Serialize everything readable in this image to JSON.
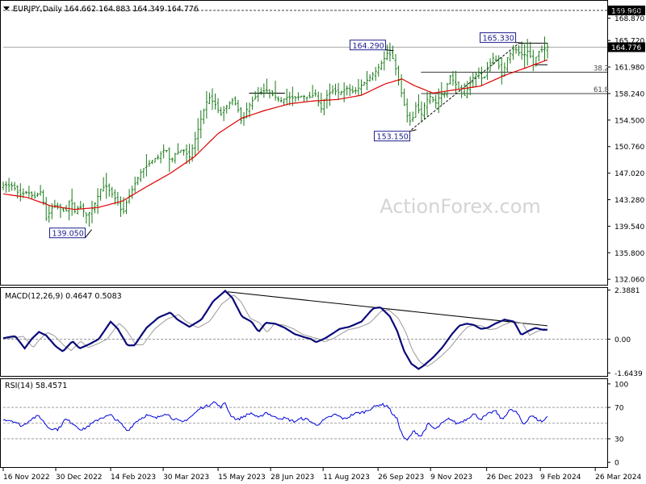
{
  "colors": {
    "price": "#1a7a1a",
    "ma": "#e00000",
    "macd": "#0a0a7a",
    "signal": "#9a9a9a",
    "rsi": "#0000dd",
    "grid": "#8c8c8c",
    "label_box": "#1c1c8c",
    "watermark": "#d4d4d4"
  },
  "chart_data": [
    {
      "type": "ohlc",
      "title": "EURJPY,Daily  164.662 164.883 164.349 164.776",
      "series": [
        {
          "name": "EURJPY,Daily",
          "values": []
        }
      ],
      "anchors": [
        {
          "d": 0,
          "v": 145.3
        },
        {
          "d": 8,
          "v": 145.2
        },
        {
          "d": 14,
          "v": 143.9
        },
        {
          "d": 20,
          "v": 144.4
        },
        {
          "d": 26,
          "v": 143.6
        },
        {
          "d": 32,
          "v": 144.5
        },
        {
          "d": 36,
          "v": 140.6
        },
        {
          "d": 42,
          "v": 142.5
        },
        {
          "d": 48,
          "v": 142.2
        },
        {
          "d": 52,
          "v": 141.3
        },
        {
          "d": 56,
          "v": 143.4
        },
        {
          "d": 60,
          "v": 141.6
        },
        {
          "d": 64,
          "v": 142.4
        },
        {
          "d": 70,
          "v": 141.0
        },
        {
          "d": 76,
          "v": 142.4
        },
        {
          "d": 82,
          "v": 144.9
        },
        {
          "d": 86,
          "v": 145.2
        },
        {
          "d": 90,
          "v": 144.3
        },
        {
          "d": 96,
          "v": 142.9
        },
        {
          "d": 100,
          "v": 141.2
        },
        {
          "d": 104,
          "v": 143.3
        },
        {
          "d": 110,
          "v": 145.4
        },
        {
          "d": 116,
          "v": 147.4
        },
        {
          "d": 120,
          "v": 148.0
        },
        {
          "d": 126,
          "v": 149.0
        },
        {
          "d": 130,
          "v": 149.3
        },
        {
          "d": 136,
          "v": 150.6
        },
        {
          "d": 140,
          "v": 148.6
        },
        {
          "d": 144,
          "v": 149.7
        },
        {
          "d": 150,
          "v": 150.4
        },
        {
          "d": 156,
          "v": 149.3
        },
        {
          "d": 160,
          "v": 151.3
        },
        {
          "d": 166,
          "v": 154.9
        },
        {
          "d": 172,
          "v": 157.8
        },
        {
          "d": 178,
          "v": 156.6
        },
        {
          "d": 182,
          "v": 155.2
        },
        {
          "d": 186,
          "v": 156.2
        },
        {
          "d": 192,
          "v": 157.3
        },
        {
          "d": 196,
          "v": 156.4
        },
        {
          "d": 200,
          "v": 154.0
        },
        {
          "d": 204,
          "v": 156.0
        },
        {
          "d": 208,
          "v": 157.1
        },
        {
          "d": 214,
          "v": 158.3
        },
        {
          "d": 220,
          "v": 158.7
        },
        {
          "d": 226,
          "v": 158.0
        },
        {
          "d": 232,
          "v": 157.2
        },
        {
          "d": 238,
          "v": 157.7
        },
        {
          "d": 244,
          "v": 157.6
        },
        {
          "d": 250,
          "v": 157.9
        },
        {
          "d": 256,
          "v": 157.7
        },
        {
          "d": 262,
          "v": 158.2
        },
        {
          "d": 266,
          "v": 155.9
        },
        {
          "d": 270,
          "v": 157.8
        },
        {
          "d": 276,
          "v": 158.7
        },
        {
          "d": 282,
          "v": 158.3
        },
        {
          "d": 288,
          "v": 159.0
        },
        {
          "d": 294,
          "v": 158.4
        },
        {
          "d": 300,
          "v": 159.4
        },
        {
          "d": 306,
          "v": 160.3
        },
        {
          "d": 312,
          "v": 161.4
        },
        {
          "d": 318,
          "v": 162.8
        },
        {
          "d": 322,
          "v": 164.0
        },
        {
          "d": 326,
          "v": 163.4
        },
        {
          "d": 330,
          "v": 161.0
        },
        {
          "d": 334,
          "v": 158.0
        },
        {
          "d": 338,
          "v": 155.2
        },
        {
          "d": 342,
          "v": 154.0
        },
        {
          "d": 346,
          "v": 156.7
        },
        {
          "d": 350,
          "v": 155.1
        },
        {
          "d": 354,
          "v": 157.2
        },
        {
          "d": 358,
          "v": 157.9
        },
        {
          "d": 362,
          "v": 156.8
        },
        {
          "d": 366,
          "v": 158.0
        },
        {
          "d": 370,
          "v": 158.4
        },
        {
          "d": 374,
          "v": 160.7
        },
        {
          "d": 378,
          "v": 159.9
        },
        {
          "d": 382,
          "v": 158.7
        },
        {
          "d": 386,
          "v": 157.8
        },
        {
          "d": 390,
          "v": 159.4
        },
        {
          "d": 394,
          "v": 160.6
        },
        {
          "d": 398,
          "v": 161.3
        },
        {
          "d": 402,
          "v": 160.0
        },
        {
          "d": 406,
          "v": 161.8
        },
        {
          "d": 410,
          "v": 163.3
        },
        {
          "d": 414,
          "v": 162.7
        },
        {
          "d": 418,
          "v": 160.6
        },
        {
          "d": 422,
          "v": 163.2
        },
        {
          "d": 428,
          "v": 164.6
        },
        {
          "d": 432,
          "v": 164.0
        },
        {
          "d": 436,
          "v": 163.6
        },
        {
          "d": 440,
          "v": 164.3
        },
        {
          "d": 444,
          "v": 162.3
        },
        {
          "d": 448,
          "v": 164.1
        },
        {
          "d": 452,
          "v": 164.5
        },
        {
          "d": 456,
          "v": 164.8
        }
      ],
      "moving_average_anchors": [
        {
          "d": 0,
          "v": 144.1
        },
        {
          "d": 20,
          "v": 143.6
        },
        {
          "d": 40,
          "v": 142.4
        },
        {
          "d": 60,
          "v": 141.9
        },
        {
          "d": 80,
          "v": 142.2
        },
        {
          "d": 100,
          "v": 143.1
        },
        {
          "d": 120,
          "v": 145.1
        },
        {
          "d": 140,
          "v": 147.0
        },
        {
          "d": 160,
          "v": 149.3
        },
        {
          "d": 180,
          "v": 152.6
        },
        {
          "d": 200,
          "v": 154.8
        },
        {
          "d": 220,
          "v": 155.9
        },
        {
          "d": 240,
          "v": 156.8
        },
        {
          "d": 260,
          "v": 157.2
        },
        {
          "d": 280,
          "v": 157.4
        },
        {
          "d": 300,
          "v": 158.0
        },
        {
          "d": 320,
          "v": 159.6
        },
        {
          "d": 334,
          "v": 160.3
        },
        {
          "d": 344,
          "v": 159.4
        },
        {
          "d": 360,
          "v": 158.3
        },
        {
          "d": 380,
          "v": 158.8
        },
        {
          "d": 400,
          "v": 159.3
        },
        {
          "d": 420,
          "v": 160.8
        },
        {
          "d": 440,
          "v": 162.0
        },
        {
          "d": 456,
          "v": 163.0
        }
      ],
      "y_ticks": [
        "169.960",
        "168.870",
        "165.720",
        "161.980",
        "158.240",
        "154.500",
        "150.760",
        "147.020",
        "143.280",
        "139.540",
        "135.800",
        "132.060"
      ],
      "y_tick_values": [
        169.96,
        168.87,
        165.72,
        161.98,
        158.24,
        154.5,
        150.76,
        147.02,
        143.28,
        139.54,
        135.8,
        132.06
      ],
      "ylim": [
        131.4,
        171.2
      ],
      "current_price": "164.776",
      "current_price_value": 164.776,
      "resistance_level": "169.960",
      "resistance_value": 169.96,
      "fib_levels": [
        {
          "label": "38.2",
          "value": 161.25
        },
        {
          "label": "61.8",
          "value": 158.24
        }
      ],
      "annotations": [
        {
          "label": "164.290",
          "d": 323,
          "value": 164.29
        },
        {
          "label": "165.330",
          "d": 432,
          "value": 165.33
        },
        {
          "label": "153.150",
          "d": 342,
          "value": 153.15
        },
        {
          "label": "139.050",
          "d": 70,
          "value": 139.05
        }
      ],
      "watermark": "ActionForex.com"
    },
    {
      "type": "line",
      "title": "MACD(12,26,9) 0.4647 0.5083",
      "series": [
        {
          "name": "MACD(12,26,9)",
          "last": 0.4647
        },
        {
          "name": "signal",
          "last": 0.5083
        }
      ],
      "macd_anchors": [
        {
          "d": 0,
          "v": 0.05
        },
        {
          "d": 10,
          "v": 0.15
        },
        {
          "d": 18,
          "v": -0.45
        },
        {
          "d": 24,
          "v": 0.02
        },
        {
          "d": 30,
          "v": 0.35
        },
        {
          "d": 36,
          "v": 0.18
        },
        {
          "d": 44,
          "v": -0.35
        },
        {
          "d": 50,
          "v": -0.6
        },
        {
          "d": 58,
          "v": -0.1
        },
        {
          "d": 64,
          "v": -0.45
        },
        {
          "d": 72,
          "v": -0.25
        },
        {
          "d": 80,
          "v": 0.0
        },
        {
          "d": 90,
          "v": 0.85
        },
        {
          "d": 96,
          "v": 0.5
        },
        {
          "d": 104,
          "v": -0.3
        },
        {
          "d": 110,
          "v": -0.3
        },
        {
          "d": 120,
          "v": 0.55
        },
        {
          "d": 130,
          "v": 1.05
        },
        {
          "d": 140,
          "v": 1.3
        },
        {
          "d": 146,
          "v": 0.95
        },
        {
          "d": 156,
          "v": 0.6
        },
        {
          "d": 166,
          "v": 0.95
        },
        {
          "d": 176,
          "v": 1.85
        },
        {
          "d": 186,
          "v": 2.35
        },
        {
          "d": 192,
          "v": 2.0
        },
        {
          "d": 200,
          "v": 1.1
        },
        {
          "d": 208,
          "v": 0.85
        },
        {
          "d": 214,
          "v": 0.35
        },
        {
          "d": 220,
          "v": 0.8
        },
        {
          "d": 228,
          "v": 0.75
        },
        {
          "d": 236,
          "v": 0.55
        },
        {
          "d": 244,
          "v": 0.25
        },
        {
          "d": 252,
          "v": 0.1
        },
        {
          "d": 258,
          "v": 0.0
        },
        {
          "d": 262,
          "v": -0.15
        },
        {
          "d": 270,
          "v": 0.05
        },
        {
          "d": 282,
          "v": 0.5
        },
        {
          "d": 290,
          "v": 0.6
        },
        {
          "d": 300,
          "v": 0.85
        },
        {
          "d": 310,
          "v": 1.5
        },
        {
          "d": 316,
          "v": 1.55
        },
        {
          "d": 324,
          "v": 1.1
        },
        {
          "d": 330,
          "v": 0.4
        },
        {
          "d": 336,
          "v": -0.6
        },
        {
          "d": 342,
          "v": -1.2
        },
        {
          "d": 348,
          "v": -1.45
        },
        {
          "d": 352,
          "v": -1.3
        },
        {
          "d": 360,
          "v": -0.9
        },
        {
          "d": 368,
          "v": -0.4
        },
        {
          "d": 376,
          "v": 0.25
        },
        {
          "d": 382,
          "v": 0.65
        },
        {
          "d": 388,
          "v": 0.75
        },
        {
          "d": 394,
          "v": 0.7
        },
        {
          "d": 400,
          "v": 0.5
        },
        {
          "d": 406,
          "v": 0.55
        },
        {
          "d": 412,
          "v": 0.75
        },
        {
          "d": 420,
          "v": 0.95
        },
        {
          "d": 428,
          "v": 0.85
        },
        {
          "d": 434,
          "v": 0.2
        },
        {
          "d": 440,
          "v": 0.4
        },
        {
          "d": 446,
          "v": 0.55
        },
        {
          "d": 452,
          "v": 0.45
        },
        {
          "d": 456,
          "v": 0.46
        }
      ],
      "trendline": [
        {
          "d": 188,
          "v": 2.3
        },
        {
          "d": 456,
          "v": 0.65
        }
      ],
      "y_ticks": [
        "2.3881",
        "0.00",
        "-1.6439"
      ],
      "y_tick_values": [
        2.3881,
        0.0,
        -1.6439
      ],
      "ylim": [
        -1.75,
        2.45
      ]
    },
    {
      "type": "line",
      "title": "RSI(14) 58.4571",
      "series": [
        {
          "name": "RSI(14)",
          "last": 58.4571
        }
      ],
      "rsi_anchors": [
        {
          "d": 0,
          "v": 55
        },
        {
          "d": 8,
          "v": 53
        },
        {
          "d": 16,
          "v": 46
        },
        {
          "d": 24,
          "v": 56
        },
        {
          "d": 30,
          "v": 59
        },
        {
          "d": 38,
          "v": 44
        },
        {
          "d": 46,
          "v": 42
        },
        {
          "d": 52,
          "v": 55
        },
        {
          "d": 58,
          "v": 50
        },
        {
          "d": 66,
          "v": 41
        },
        {
          "d": 74,
          "v": 49
        },
        {
          "d": 82,
          "v": 57
        },
        {
          "d": 90,
          "v": 60
        },
        {
          "d": 98,
          "v": 50
        },
        {
          "d": 104,
          "v": 40
        },
        {
          "d": 112,
          "v": 53
        },
        {
          "d": 120,
          "v": 60
        },
        {
          "d": 128,
          "v": 56
        },
        {
          "d": 136,
          "v": 63
        },
        {
          "d": 142,
          "v": 56
        },
        {
          "d": 150,
          "v": 51
        },
        {
          "d": 158,
          "v": 59
        },
        {
          "d": 166,
          "v": 70
        },
        {
          "d": 172,
          "v": 72
        },
        {
          "d": 176,
          "v": 78
        },
        {
          "d": 182,
          "v": 70
        },
        {
          "d": 186,
          "v": 76
        },
        {
          "d": 190,
          "v": 61
        },
        {
          "d": 196,
          "v": 54
        },
        {
          "d": 202,
          "v": 59
        },
        {
          "d": 208,
          "v": 63
        },
        {
          "d": 214,
          "v": 56
        },
        {
          "d": 220,
          "v": 64
        },
        {
          "d": 228,
          "v": 57
        },
        {
          "d": 236,
          "v": 56
        },
        {
          "d": 244,
          "v": 52
        },
        {
          "d": 250,
          "v": 56
        },
        {
          "d": 256,
          "v": 54
        },
        {
          "d": 262,
          "v": 47
        },
        {
          "d": 270,
          "v": 55
        },
        {
          "d": 278,
          "v": 61
        },
        {
          "d": 286,
          "v": 55
        },
        {
          "d": 294,
          "v": 62
        },
        {
          "d": 302,
          "v": 64
        },
        {
          "d": 310,
          "v": 70
        },
        {
          "d": 316,
          "v": 74
        },
        {
          "d": 322,
          "v": 72
        },
        {
          "d": 326,
          "v": 62
        },
        {
          "d": 330,
          "v": 55
        },
        {
          "d": 334,
          "v": 36
        },
        {
          "d": 338,
          "v": 27
        },
        {
          "d": 344,
          "v": 40
        },
        {
          "d": 350,
          "v": 33
        },
        {
          "d": 356,
          "v": 49
        },
        {
          "d": 362,
          "v": 42
        },
        {
          "d": 368,
          "v": 50
        },
        {
          "d": 374,
          "v": 56
        },
        {
          "d": 380,
          "v": 49
        },
        {
          "d": 388,
          "v": 55
        },
        {
          "d": 394,
          "v": 62
        },
        {
          "d": 400,
          "v": 55
        },
        {
          "d": 406,
          "v": 61
        },
        {
          "d": 412,
          "v": 66
        },
        {
          "d": 418,
          "v": 54
        },
        {
          "d": 424,
          "v": 67
        },
        {
          "d": 430,
          "v": 64
        },
        {
          "d": 436,
          "v": 48
        },
        {
          "d": 442,
          "v": 60
        },
        {
          "d": 448,
          "v": 54
        },
        {
          "d": 452,
          "v": 52
        },
        {
          "d": 456,
          "v": 58.46
        }
      ],
      "y_ticks": [
        "100",
        "70",
        "30",
        "0"
      ],
      "y_tick_values": [
        100,
        70,
        30,
        0
      ],
      "ylim": [
        -5,
        105
      ],
      "levels": [
        70,
        50,
        30
      ]
    }
  ],
  "x_axis": {
    "labels": [
      {
        "label": "16 Nov 2022",
        "d": 0
      },
      {
        "label": "30 Dec 2022",
        "d": 44
      },
      {
        "label": "14 Feb 2023",
        "d": 90
      },
      {
        "label": "30 Mar 2023",
        "d": 134
      },
      {
        "label": "15 May 2023",
        "d": 180
      },
      {
        "label": "28 Jun 2023",
        "d": 224
      },
      {
        "label": "11 Aug 2023",
        "d": 268
      },
      {
        "label": "26 Sep 2023",
        "d": 314
      },
      {
        "label": "9 Nov 2023",
        "d": 358
      },
      {
        "label": "26 Dec 2023",
        "d": 405
      },
      {
        "label": "9 Feb 2024",
        "d": 450
      },
      {
        "label": "26 Mar 2024",
        "d": 496
      }
    ]
  }
}
